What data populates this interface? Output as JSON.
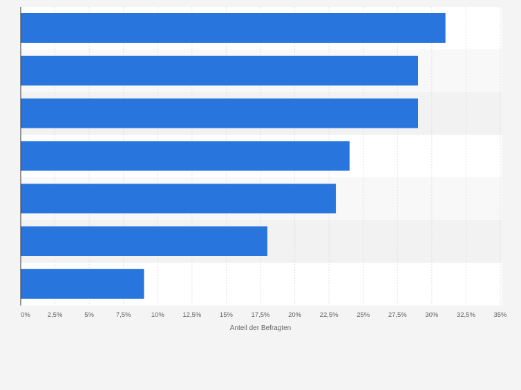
{
  "chart_data": {
    "type": "bar",
    "orientation": "horizontal",
    "categories": [
      "",
      "",
      "",
      "",
      "",
      "",
      ""
    ],
    "values": [
      31,
      29,
      29,
      24,
      23,
      18,
      9
    ],
    "xlabel": "Anteil der Befragten",
    "ylabel": "",
    "xlim": [
      0,
      35
    ],
    "ticks": [
      0,
      2.5,
      5,
      7.5,
      10,
      12.5,
      15,
      17.5,
      20,
      22.5,
      25,
      27.5,
      30,
      32.5,
      35
    ],
    "tick_labels": [
      "0%",
      "2,5%",
      "5%",
      "7,5%",
      "10%",
      "12,5%",
      "15%",
      "17,5%",
      "20%",
      "22,5%",
      "25%",
      "27,5%",
      "30%",
      "32,5%",
      "35%"
    ],
    "grid": true,
    "bar_color": "#2876dd",
    "band_colors": [
      "#ffffff",
      "#f8f8f8",
      "#f2f2f2"
    ],
    "gridline_color": "#e0e0e0",
    "text_color": "#666666"
  }
}
